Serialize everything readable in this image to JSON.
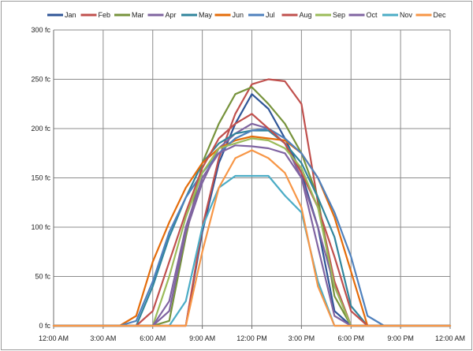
{
  "chart_data": {
    "type": "line",
    "title": "",
    "xlabel": "",
    "ylabel": "",
    "y_unit": "fc",
    "xlim": [
      0,
      24
    ],
    "ylim": [
      0,
      300
    ],
    "y_ticks": [
      0,
      50,
      100,
      150,
      200,
      250,
      300
    ],
    "y_tick_labels": [
      "0 fc",
      "50 fc",
      "100 fc",
      "150 fc",
      "200 fc",
      "250 fc",
      "300 fc"
    ],
    "x_ticks": [
      0,
      3,
      6,
      9,
      12,
      15,
      18,
      21,
      24
    ],
    "x_tick_labels": [
      "12:00 AM",
      "3:00 AM",
      "6:00 AM",
      "9:00 AM",
      "12:00 PM",
      "3:00 PM",
      "6:00 PM",
      "9:00 PM",
      "12:00 AM"
    ],
    "grid": true,
    "legend_position": "top",
    "x": [
      0,
      1,
      2,
      3,
      4,
      5,
      6,
      7,
      8,
      9,
      10,
      11,
      12,
      13,
      14,
      15,
      16,
      17,
      18,
      19,
      20,
      21,
      22,
      23,
      24
    ],
    "series": [
      {
        "name": "Jan",
        "color": "#2f5597",
        "values": [
          0,
          0,
          0,
          0,
          0,
          0,
          0,
          0,
          0,
          95,
          165,
          205,
          235,
          220,
          190,
          155,
          100,
          15,
          0,
          0,
          0,
          0,
          0,
          0,
          0
        ]
      },
      {
        "name": "Feb",
        "color": "#c0504d",
        "values": [
          0,
          0,
          0,
          0,
          0,
          0,
          0,
          0,
          0,
          100,
          170,
          215,
          245,
          250,
          248,
          225,
          125,
          45,
          0,
          0,
          0,
          0,
          0,
          0,
          0
        ]
      },
      {
        "name": "Mar",
        "color": "#77933c",
        "values": [
          0,
          0,
          0,
          0,
          0,
          0,
          0,
          5,
          90,
          165,
          205,
          235,
          242,
          225,
          205,
          175,
          130,
          30,
          0,
          0,
          0,
          0,
          0,
          0,
          0
        ]
      },
      {
        "name": "Apr",
        "color": "#7f64a0",
        "values": [
          0,
          0,
          0,
          0,
          0,
          0,
          0,
          15,
          95,
          145,
          180,
          195,
          205,
          200,
          185,
          150,
          100,
          40,
          0,
          0,
          0,
          0,
          0,
          0,
          0
        ]
      },
      {
        "name": "May",
        "color": "#31859c",
        "values": [
          0,
          0,
          0,
          0,
          0,
          0,
          40,
          90,
          130,
          165,
          185,
          195,
          198,
          198,
          185,
          165,
          130,
          90,
          20,
          0,
          0,
          0,
          0,
          0,
          0
        ]
      },
      {
        "name": "Jun",
        "color": "#e46c0a",
        "values": [
          0,
          0,
          0,
          0,
          0,
          10,
          65,
          105,
          140,
          165,
          180,
          188,
          192,
          190,
          188,
          175,
          150,
          110,
          55,
          0,
          0,
          0,
          0,
          0,
          0
        ]
      },
      {
        "name": "Jul",
        "color": "#4f81bd",
        "values": [
          0,
          0,
          0,
          0,
          0,
          5,
          45,
          95,
          130,
          155,
          175,
          190,
          198,
          200,
          190,
          175,
          150,
          115,
          70,
          10,
          0,
          0,
          0,
          0,
          0
        ]
      },
      {
        "name": "Aug",
        "color": "#c0504d",
        "values": [
          0,
          0,
          0,
          0,
          0,
          0,
          15,
          65,
          115,
          160,
          190,
          205,
          215,
          200,
          185,
          155,
          120,
          70,
          15,
          0,
          0,
          0,
          0,
          0,
          0
        ]
      },
      {
        "name": "Sep",
        "color": "#9bbb59",
        "values": [
          0,
          0,
          0,
          0,
          0,
          0,
          0,
          50,
          110,
          155,
          180,
          185,
          190,
          188,
          180,
          160,
          120,
          40,
          0,
          0,
          0,
          0,
          0,
          0,
          0
        ]
      },
      {
        "name": "Oct",
        "color": "#8064a2",
        "values": [
          0,
          0,
          0,
          0,
          0,
          0,
          0,
          25,
          100,
          150,
          175,
          183,
          182,
          180,
          175,
          150,
          80,
          10,
          0,
          0,
          0,
          0,
          0,
          0,
          0
        ]
      },
      {
        "name": "Nov",
        "color": "#4bacc6",
        "values": [
          0,
          0,
          0,
          0,
          0,
          0,
          0,
          0,
          25,
          100,
          140,
          152,
          152,
          152,
          132,
          115,
          45,
          0,
          0,
          0,
          0,
          0,
          0,
          0,
          0
        ]
      },
      {
        "name": "Dec",
        "color": "#f79646",
        "values": [
          0,
          0,
          0,
          0,
          0,
          0,
          0,
          0,
          0,
          75,
          140,
          170,
          178,
          170,
          155,
          120,
          40,
          0,
          0,
          0,
          0,
          0,
          0,
          0,
          0
        ]
      }
    ]
  }
}
